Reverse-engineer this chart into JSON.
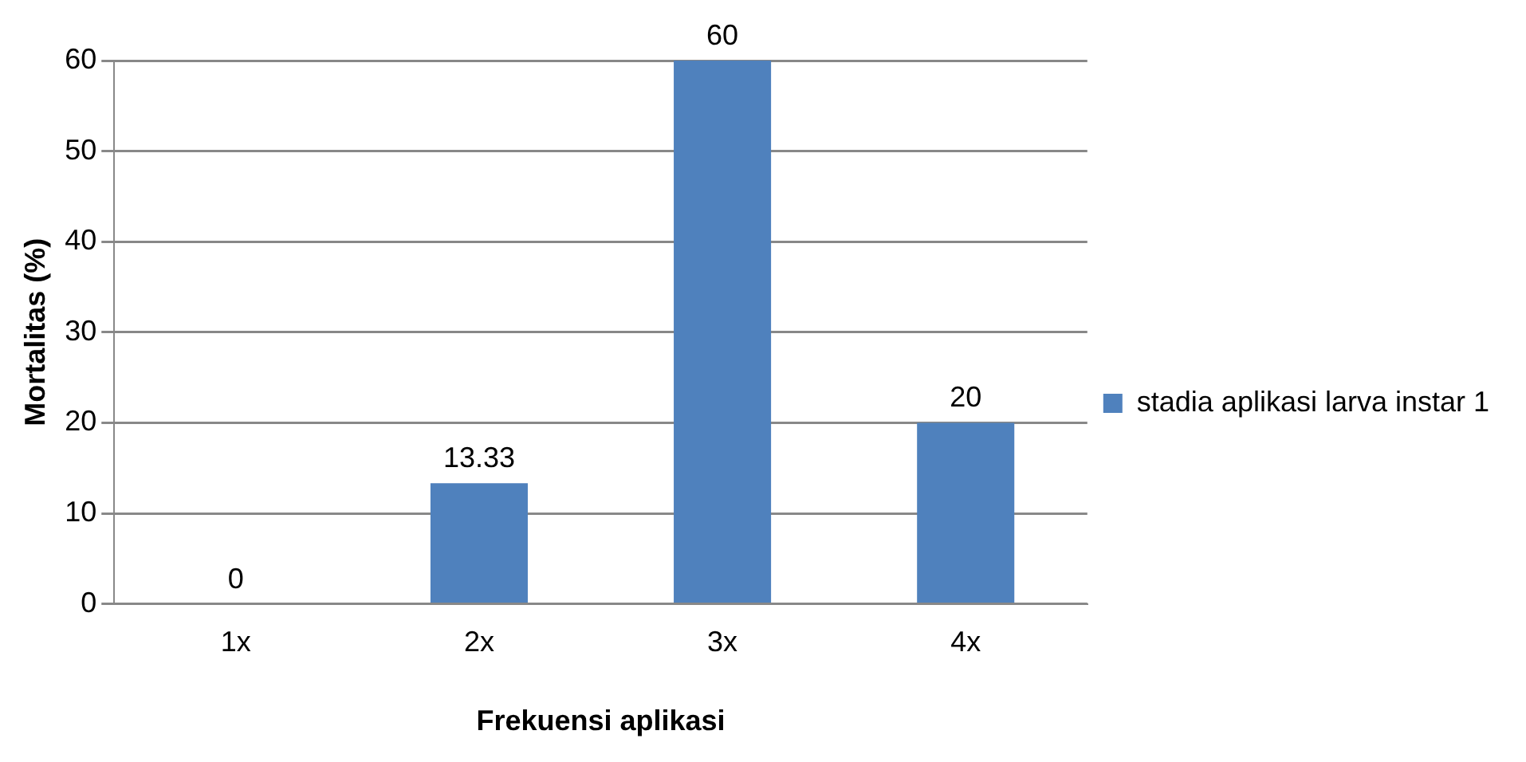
{
  "chart_data": {
    "type": "bar",
    "xlabel": "Frekuensi aplikasi",
    "ylabel": "Mortalitas (%)",
    "categories": [
      "1x",
      "2x",
      "3x",
      "4x"
    ],
    "series": [
      {
        "name": "stadia aplikasi larva instar 1",
        "color": "#4f81bd",
        "values": [
          0,
          13.33,
          60,
          20
        ]
      }
    ],
    "ylim": [
      0,
      60
    ],
    "yticks": [
      0,
      10,
      20,
      30,
      40,
      50,
      60
    ],
    "grid": "y",
    "legend": "right",
    "data_labels": true
  }
}
